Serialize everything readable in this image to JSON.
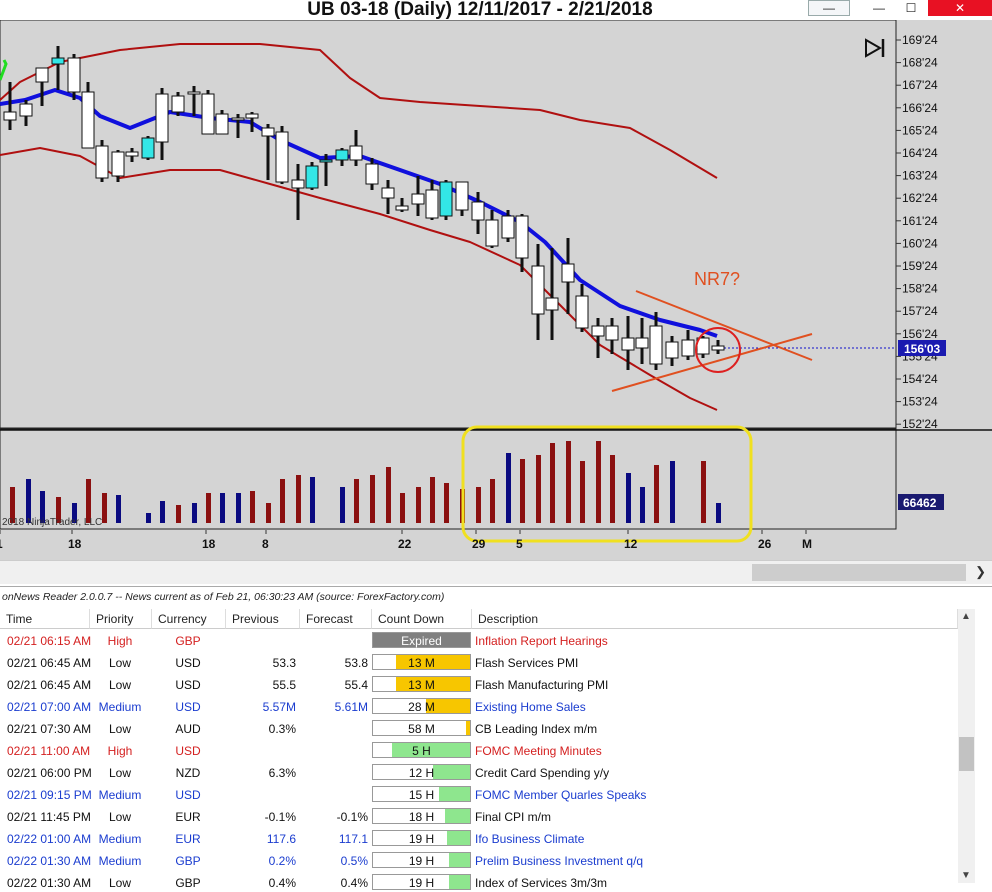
{
  "window": {
    "title": "UB 03-18 (Daily)  12/11/2017 - 2/21/2018",
    "restore_glyph": "—",
    "minimize_glyph": "—",
    "maximize_glyph": "☐",
    "close_glyph": "✕"
  },
  "chart": {
    "price_labels": [
      "169'24",
      "168'24",
      "167'24",
      "166'24",
      "165'24",
      "164'24",
      "163'24",
      "162'24",
      "161'24",
      "160'24",
      "159'24",
      "158'24",
      "157'24",
      "156'24",
      "155'24",
      "154'24",
      "153'24",
      "152'24"
    ],
    "current_price": "156'03",
    "volume_value": "66462",
    "annotation": "NR7?",
    "copyright": "2018 NinjaTrader, LLC",
    "date_labels": [
      "1",
      "18",
      "18",
      "8",
      "22",
      "29",
      "5",
      "12",
      "26",
      "M"
    ],
    "playback_icon": "skip-forward-icon",
    "colors": {
      "background": "#d4d4d4",
      "up_candle": "#33e6e6",
      "down_candle": "#ffffff",
      "ema": "#1010dd",
      "bands": "#b01010",
      "annotation": "#e05020",
      "highlight": "#f0e020",
      "vol_up": "#0a0a80",
      "vol_down": "#8b1010"
    }
  },
  "news": {
    "header": "onNews Reader 2.0.0.7  --  News current as of Feb 21, 06:30:23 AM  (source: ForexFactory.com)",
    "columns": [
      "Time",
      "Priority",
      "Currency",
      "Previous",
      "Forecast",
      "Count Down",
      "Description"
    ],
    "rows": [
      {
        "time": "02/21 06:15 AM",
        "priority": "High",
        "currency": "GBP",
        "previous": "",
        "forecast": "",
        "countdown": "Expired",
        "description": "Inflation Report Hearings",
        "color": "#d42020",
        "fill_pct": 100,
        "fill": "#808080"
      },
      {
        "time": "02/21 06:45 AM",
        "priority": "Low",
        "currency": "USD",
        "previous": "53.3",
        "forecast": "53.8",
        "countdown": "13 M",
        "description": "Flash Services PMI",
        "color": "#111111",
        "fill_pct": 76,
        "fill": "#f7c600"
      },
      {
        "time": "02/21 06:45 AM",
        "priority": "Low",
        "currency": "USD",
        "previous": "55.5",
        "forecast": "55.4",
        "countdown": "13 M",
        "description": "Flash Manufacturing PMI",
        "color": "#111111",
        "fill_pct": 76,
        "fill": "#f7c600"
      },
      {
        "time": "02/21 07:00 AM",
        "priority": "Medium",
        "currency": "USD",
        "previous": "5.57M",
        "forecast": "5.61M",
        "countdown": "28 M",
        "description": "Existing Home Sales",
        "color": "#1a3ccf",
        "fill_pct": 45,
        "fill": "#f7c600"
      },
      {
        "time": "02/21 07:30 AM",
        "priority": "Low",
        "currency": "AUD",
        "previous": "0.3%",
        "forecast": "",
        "countdown": "58 M",
        "description": "CB Leading Index m/m",
        "color": "#111111",
        "fill_pct": 4,
        "fill": "#f7c600"
      },
      {
        "time": "02/21 11:00 AM",
        "priority": "High",
        "currency": "USD",
        "previous": "",
        "forecast": "",
        "countdown": "5 H",
        "description": "FOMC Meeting Minutes",
        "color": "#d42020",
        "fill_pct": 80,
        "fill": "#8ee68e"
      },
      {
        "time": "02/21 06:00 PM",
        "priority": "Low",
        "currency": "NZD",
        "previous": "6.3%",
        "forecast": "",
        "countdown": "12 H",
        "description": "Credit Card Spending y/y",
        "color": "#111111",
        "fill_pct": 38,
        "fill": "#8ee68e"
      },
      {
        "time": "02/21 09:15 PM",
        "priority": "Medium",
        "currency": "USD",
        "previous": "",
        "forecast": "",
        "countdown": "15 H",
        "description": "FOMC Member Quarles Speaks",
        "color": "#1a3ccf",
        "fill_pct": 32,
        "fill": "#8ee68e"
      },
      {
        "time": "02/21 11:45 PM",
        "priority": "Low",
        "currency": "EUR",
        "previous": "-0.1%",
        "forecast": "-0.1%",
        "countdown": "18 H",
        "description": "Final CPI m/m",
        "color": "#111111",
        "fill_pct": 26,
        "fill": "#8ee68e"
      },
      {
        "time": "02/22 01:00 AM",
        "priority": "Medium",
        "currency": "EUR",
        "previous": "117.6",
        "forecast": "117.1",
        "countdown": "19 H",
        "description": "Ifo Business Climate",
        "color": "#1a3ccf",
        "fill_pct": 24,
        "fill": "#8ee68e"
      },
      {
        "time": "02/22 01:30 AM",
        "priority": "Medium",
        "currency": "GBP",
        "previous": "0.2%",
        "forecast": "0.5%",
        "countdown": "19 H",
        "description": "Prelim Business Investment q/q",
        "color": "#1a3ccf",
        "fill_pct": 22,
        "fill": "#8ee68e"
      },
      {
        "time": "02/22 01:30 AM",
        "priority": "Low",
        "currency": "GBP",
        "previous": "0.4%",
        "forecast": "0.4%",
        "countdown": "19 H",
        "description": "Index of Services 3m/3m",
        "color": "#111111",
        "fill_pct": 22,
        "fill": "#8ee68e"
      }
    ]
  }
}
